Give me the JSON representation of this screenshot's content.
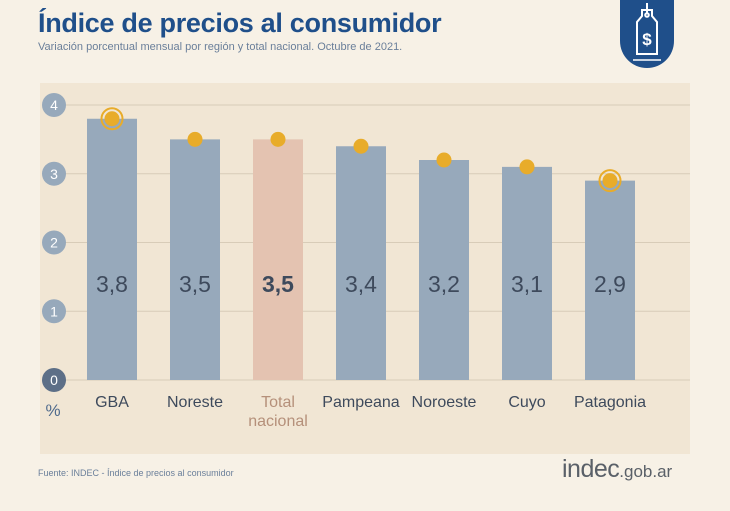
{
  "header": {
    "title": "Índice de precios al consumidor",
    "subtitle": "Variación porcentual mensual por región y total nacional. Octubre de 2021."
  },
  "footer": {
    "source": "Fuente: INDEC - Índice de precios al consumidor",
    "logo_main": "indec",
    "logo_domain": ".gob.ar"
  },
  "badge": {
    "icon": "price-tag-dollar-icon"
  },
  "chart_data": {
    "type": "bar",
    "title": "Índice de precios al consumidor",
    "subtitle": "Variación porcentual mensual por región y total nacional. Octubre de 2021.",
    "ylabel": "%",
    "ylim": [
      0,
      4
    ],
    "yticks": [
      0,
      1,
      2,
      3,
      4
    ],
    "grid": true,
    "categories": [
      "GBA",
      "Noreste",
      "Total nacional",
      "Pampeana",
      "Noroeste",
      "Cuyo",
      "Patagonia"
    ],
    "category_lines": [
      [
        "GBA"
      ],
      [
        "Noreste"
      ],
      [
        "Total",
        "nacional"
      ],
      [
        "Pampeana"
      ],
      [
        "Noroeste"
      ],
      [
        "Cuyo"
      ],
      [
        "Patagonia"
      ]
    ],
    "values": [
      3.8,
      3.5,
      3.5,
      3.4,
      3.2,
      3.1,
      2.9
    ],
    "value_labels": [
      "3,8",
      "3,5",
      "3,5",
      "3,4",
      "3,2",
      "3,1",
      "2,9"
    ],
    "highlight_index": 2,
    "ringed_markers": [
      0,
      6
    ],
    "colors": {
      "bar": "#97a9bb",
      "bar_highlight": "#e4c3b1",
      "marker": "#e8ac2a",
      "grid": "#d8ccb8",
      "tick_circle": "#97a9bb",
      "tick_circle_zero": "#5d6f87",
      "value_label": "#3e4a5c",
      "category_label": "#3e4a5c",
      "category_label_highlight": "#b5907a"
    }
  }
}
